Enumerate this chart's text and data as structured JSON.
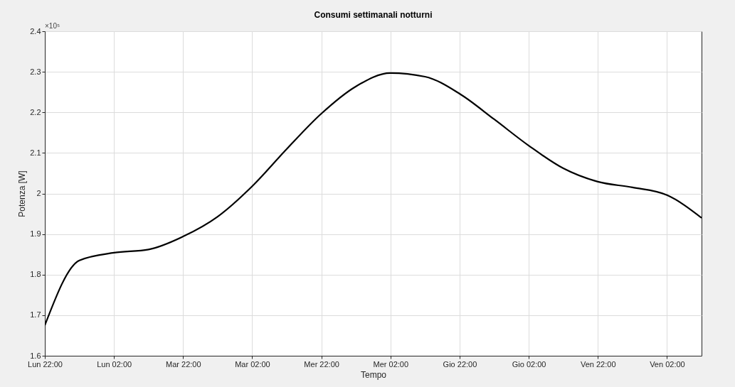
{
  "chart_data": {
    "type": "line",
    "title": "Consumi settimanali notturni",
    "xlabel": "Tempo",
    "ylabel": "Potenza [W]",
    "annotations": [
      "×10⁵"
    ],
    "categories": [
      "Lun 22:00",
      null,
      "Lun 02:00",
      null,
      "Mar 22:00",
      null,
      "Mar 02:00",
      null,
      "Mer 22:00",
      null,
      "Mer 02:00",
      null,
      "Gio 22:00",
      null,
      "Gio 02:00",
      null,
      "Ven 22:00",
      null,
      "Ven 02:00",
      null
    ],
    "series": [
      {
        "color": "#000000",
        "values": [
          1.675,
          1.835,
          1.854,
          1.862,
          1.894,
          1.943,
          2.018,
          2.11,
          2.197,
          2.264,
          2.297,
          2.288,
          2.246,
          2.183,
          2.118,
          2.062,
          2.029,
          2.015,
          1.996,
          1.94
        ]
      }
    ],
    "ylim": [
      1.6,
      2.4
    ],
    "yticks": [
      1.6,
      1.7,
      1.8,
      1.9,
      2,
      2.1,
      2.2,
      2.3,
      2.4
    ],
    "grid": true,
    "line_style": "solid",
    "marker": "none"
  }
}
